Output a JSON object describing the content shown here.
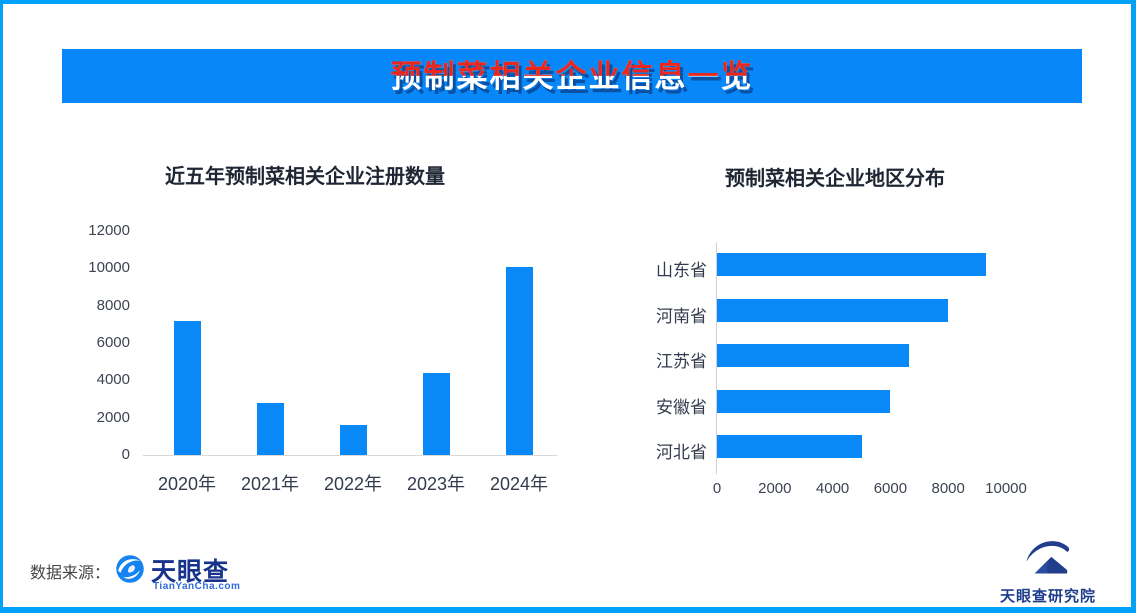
{
  "banner": {
    "title": "预制菜相关企业信息一览",
    "bg_color": "#0787F8",
    "title_top_color": "#E8281E",
    "title_bottom_color": "#FFFFFF"
  },
  "frame": {
    "border_color": "#00A1F7",
    "background": "#FFFFFF"
  },
  "chart_data": [
    {
      "type": "bar",
      "orientation": "vertical",
      "title": "近五年预制菜相关企业注册数量",
      "categories": [
        "2020年",
        "2021年",
        "2022年",
        "2023年",
        "2024年"
      ],
      "values": [
        7200,
        2800,
        1600,
        4400,
        10050
      ],
      "ylabel": "",
      "xlabel": "",
      "ylim": [
        0,
        12000
      ],
      "yticks": [
        0,
        2000,
        4000,
        6000,
        8000,
        10000,
        12000
      ],
      "grid": false,
      "bar_color": "#0989F8"
    },
    {
      "type": "bar",
      "orientation": "horizontal",
      "title": "预制菜相关企业地区分布",
      "categories": [
        "山东省",
        "河南省",
        "江苏省",
        "安徽省",
        "河北省"
      ],
      "values": [
        9300,
        8000,
        6650,
        6000,
        5000
      ],
      "ylabel": "",
      "xlabel": "",
      "xlim": [
        0,
        10000
      ],
      "xticks": [
        0,
        2000,
        4000,
        6000,
        8000,
        10000
      ],
      "grid": false,
      "bar_color": "#0989F8"
    }
  ],
  "footer": {
    "source_label": "数据来源：",
    "logo_name": "天眼查",
    "logo_url": "TianYanCha.com",
    "research_name": "天眼查研究院",
    "logo_icon_color": "#1583F0",
    "logo_text_color": "#17338C",
    "research_color": "#203E8C"
  }
}
